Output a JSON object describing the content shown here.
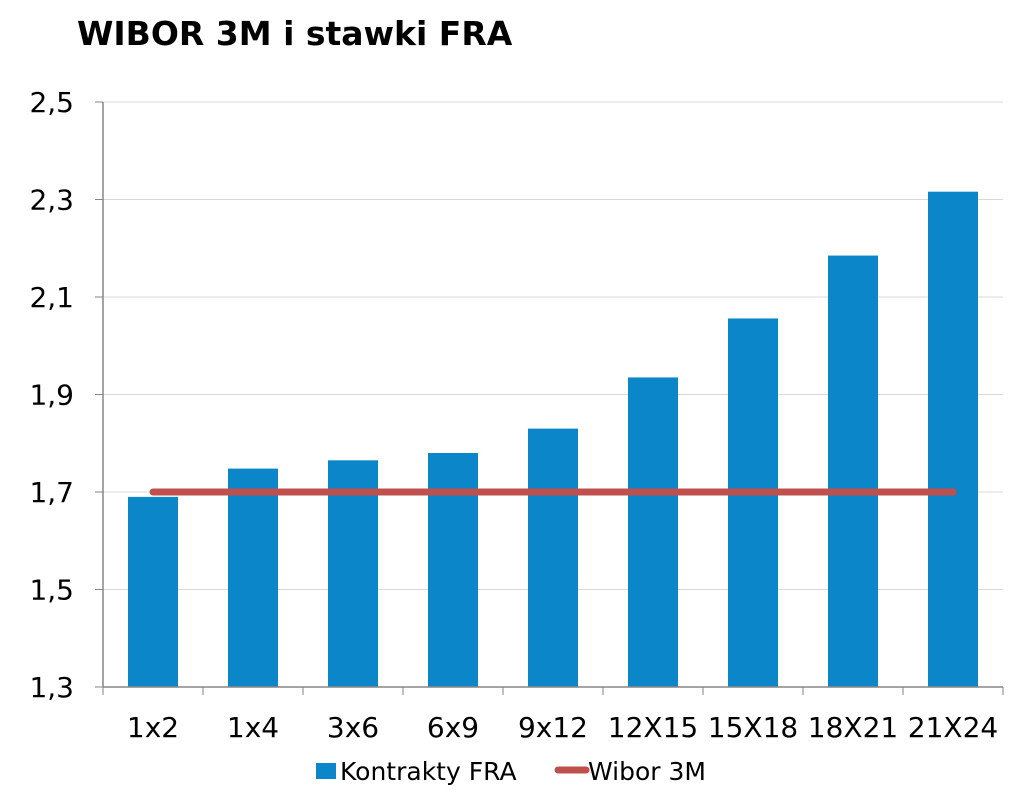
{
  "chart_data": {
    "type": "bar",
    "title": "WIBOR 3M i stawki FRA",
    "categories": [
      "1x2",
      "1x4",
      "3x6",
      "6x9",
      "9x12",
      "12X15",
      "15X18",
      "18X21",
      "21X24"
    ],
    "series": [
      {
        "name": "Kontrakty FRA",
        "type": "bar",
        "color": "#0A86C9",
        "values": [
          1.69,
          1.748,
          1.765,
          1.78,
          1.83,
          1.935,
          2.056,
          2.185,
          2.316
        ]
      },
      {
        "name": "Wibor 3M",
        "type": "line",
        "color": "#C0504D",
        "values": [
          1.7,
          1.7,
          1.7,
          1.7,
          1.7,
          1.7,
          1.7,
          1.7,
          1.7
        ]
      }
    ],
    "ylim": [
      1.3,
      2.5
    ],
    "yticks": [
      "1,3",
      "1,5",
      "1,7",
      "1,9",
      "2,1",
      "2,3",
      "2,5"
    ],
    "ytick_values": [
      1.3,
      1.5,
      1.7,
      1.9,
      2.1,
      2.3,
      2.5
    ],
    "grid": true,
    "legend_position": "bottom"
  }
}
